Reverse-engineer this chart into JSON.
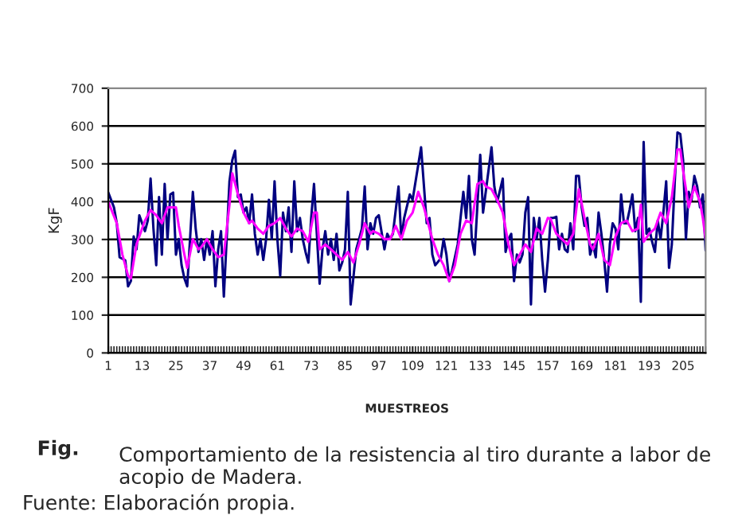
{
  "chart_data": {
    "type": "line",
    "xlabel": "MUESTREOS",
    "ylabel": "KgF",
    "xlim": [
      1,
      213
    ],
    "xticks": [
      1,
      13,
      25,
      37,
      49,
      61,
      73,
      85,
      97,
      109,
      121,
      133,
      145,
      157,
      169,
      181,
      193,
      205
    ],
    "ylim": [
      0,
      700
    ],
    "yticks": [
      0,
      100,
      200,
      300,
      400,
      500,
      600,
      700
    ],
    "grid": "y",
    "marker": "none",
    "line_style": "solid",
    "series": [
      {
        "color": "#000080",
        "x": [
          1,
          3,
          4,
          5,
          7,
          8,
          9,
          10,
          11,
          12,
          13,
          14,
          15,
          16,
          17,
          18,
          19,
          20,
          21,
          22,
          23,
          24,
          25,
          26,
          27,
          28,
          29,
          31,
          32,
          33,
          34,
          35,
          36,
          37,
          38,
          39,
          40,
          41,
          42,
          43,
          44,
          45,
          46,
          47,
          48,
          49,
          50,
          51,
          52,
          53,
          54,
          55,
          56,
          57,
          58,
          59,
          60,
          61,
          62,
          63,
          64,
          65,
          66,
          67,
          68,
          69,
          70,
          71,
          72,
          73,
          74,
          75,
          76,
          77,
          78,
          79,
          80,
          81,
          82,
          83,
          84,
          85,
          86,
          87,
          89,
          90,
          91,
          92,
          93,
          94,
          95,
          96,
          97,
          99,
          100,
          101,
          102,
          104,
          105,
          106,
          108,
          109,
          112,
          114,
          115,
          116,
          117,
          119,
          120,
          121,
          122,
          123,
          125,
          127,
          128,
          129,
          130,
          131,
          133,
          134,
          137,
          138,
          139,
          141,
          142,
          143,
          144,
          145,
          146,
          147,
          148,
          149,
          150,
          151,
          152,
          153,
          154,
          155,
          156,
          157,
          158,
          159,
          160,
          161,
          162,
          163,
          164,
          165,
          166,
          167,
          168,
          169,
          170,
          171,
          172,
          173,
          174,
          175,
          176,
          177,
          178,
          179,
          180,
          181,
          182,
          183,
          184,
          185,
          186,
          187,
          188,
          189,
          190,
          191,
          192,
          193,
          194,
          195,
          196,
          197,
          198,
          199,
          200,
          201,
          202,
          203,
          204,
          205,
          206,
          207,
          208,
          209,
          210,
          211,
          212,
          213
        ],
        "values": [
          424,
          385,
          343,
          253,
          245,
          176,
          190,
          308,
          274,
          364,
          343,
          322,
          350,
          461,
          330,
          232,
          412,
          260,
          447,
          301,
          419,
          424,
          260,
          301,
          232,
          197,
          176,
          426,
          329,
          267,
          301,
          246,
          301,
          260,
          322,
          176,
          274,
          322,
          149,
          301,
          454,
          510,
          535,
          412,
          419,
          371,
          385,
          343,
          419,
          315,
          260,
          301,
          246,
          301,
          405,
          301,
          454,
          301,
          204,
          371,
          322,
          385,
          267,
          454,
          322,
          357,
          301,
          267,
          239,
          357,
          447,
          315,
          183,
          274,
          322,
          260,
          301,
          246,
          315,
          218,
          239,
          274,
          426,
          128,
          274,
          301,
          329,
          440,
          274,
          343,
          315,
          357,
          364,
          274,
          315,
          301,
          315,
          440,
          301,
          357,
          419,
          405,
          544,
          343,
          357,
          260,
          232,
          250,
          301,
          260,
          190,
          218,
          287,
          426,
          357,
          468,
          301,
          260,
          524,
          371,
          544,
          440,
          399,
          461,
          267,
          301,
          315,
          190,
          260,
          239,
          260,
          371,
          412,
          128,
          357,
          301,
          357,
          246,
          162,
          246,
          357,
          357,
          360,
          274,
          315,
          274,
          267,
          343,
          274,
          468,
          468,
          385,
          336,
          357,
          260,
          287,
          253,
          371,
          315,
          246,
          162,
          287,
          343,
          329,
          274,
          419,
          343,
          343,
          378,
          419,
          322,
          357,
          135,
          558,
          315,
          329,
          294,
          267,
          350,
          301,
          371,
          454,
          225,
          287,
          447,
          583,
          579,
          510,
          301,
          426,
          405,
          468,
          440,
          385,
          419,
          271
        ]
      },
      {
        "color": "#ff00ff",
        "x": [
          1,
          4,
          6,
          8,
          9,
          11,
          12,
          14,
          16,
          18,
          20,
          22,
          25,
          26,
          28,
          29,
          31,
          33,
          34,
          36,
          38,
          40,
          42,
          44,
          45,
          47,
          49,
          51,
          52,
          54,
          56,
          58,
          60,
          62,
          64,
          66,
          68,
          70,
          72,
          74,
          75,
          76,
          78,
          80,
          82,
          84,
          86,
          88,
          90,
          92,
          94,
          95,
          97,
          99,
          101,
          103,
          105,
          107,
          109,
          111,
          113,
          115,
          116,
          118,
          120,
          122,
          124,
          126,
          128,
          130,
          132,
          134,
          135,
          137,
          139,
          141,
          143,
          145,
          147,
          149,
          151,
          153,
          155,
          157,
          158,
          160,
          162,
          164,
          166,
          168,
          170,
          172,
          173,
          175,
          177,
          179,
          181,
          183,
          185,
          187,
          189,
          190,
          191,
          193,
          195,
          197,
          199,
          201,
          203,
          204,
          205,
          207,
          209,
          211,
          212,
          213
        ],
        "values": [
          399,
          343,
          260,
          204,
          197,
          287,
          308,
          350,
          378,
          364,
          343,
          385,
          385,
          336,
          260,
          225,
          301,
          274,
          280,
          301,
          274,
          253,
          260,
          392,
          475,
          419,
          371,
          343,
          350,
          329,
          315,
          336,
          343,
          357,
          329,
          308,
          329,
          322,
          294,
          371,
          371,
          274,
          287,
          274,
          260,
          246,
          267,
          239,
          287,
          343,
          315,
          322,
          315,
          301,
          301,
          336,
          301,
          350,
          371,
          426,
          385,
          329,
          301,
          260,
          232,
          190,
          232,
          315,
          350,
          343,
          447,
          454,
          440,
          433,
          405,
          371,
          287,
          232,
          260,
          287,
          267,
          329,
          315,
          357,
          354,
          315,
          301,
          287,
          315,
          433,
          357,
          287,
          274,
          315,
          246,
          232,
          308,
          343,
          350,
          322,
          329,
          392,
          294,
          315,
          329,
          371,
          343,
          412,
          538,
          538,
          482,
          385,
          440,
          399,
          357,
          301
        ]
      }
    ],
    "annotations": [
      "Fig.",
      "Comportamiento de la resistencia al tiro durante a labor de acopio de Madera.",
      "Fuente: Elaboración propia."
    ]
  }
}
